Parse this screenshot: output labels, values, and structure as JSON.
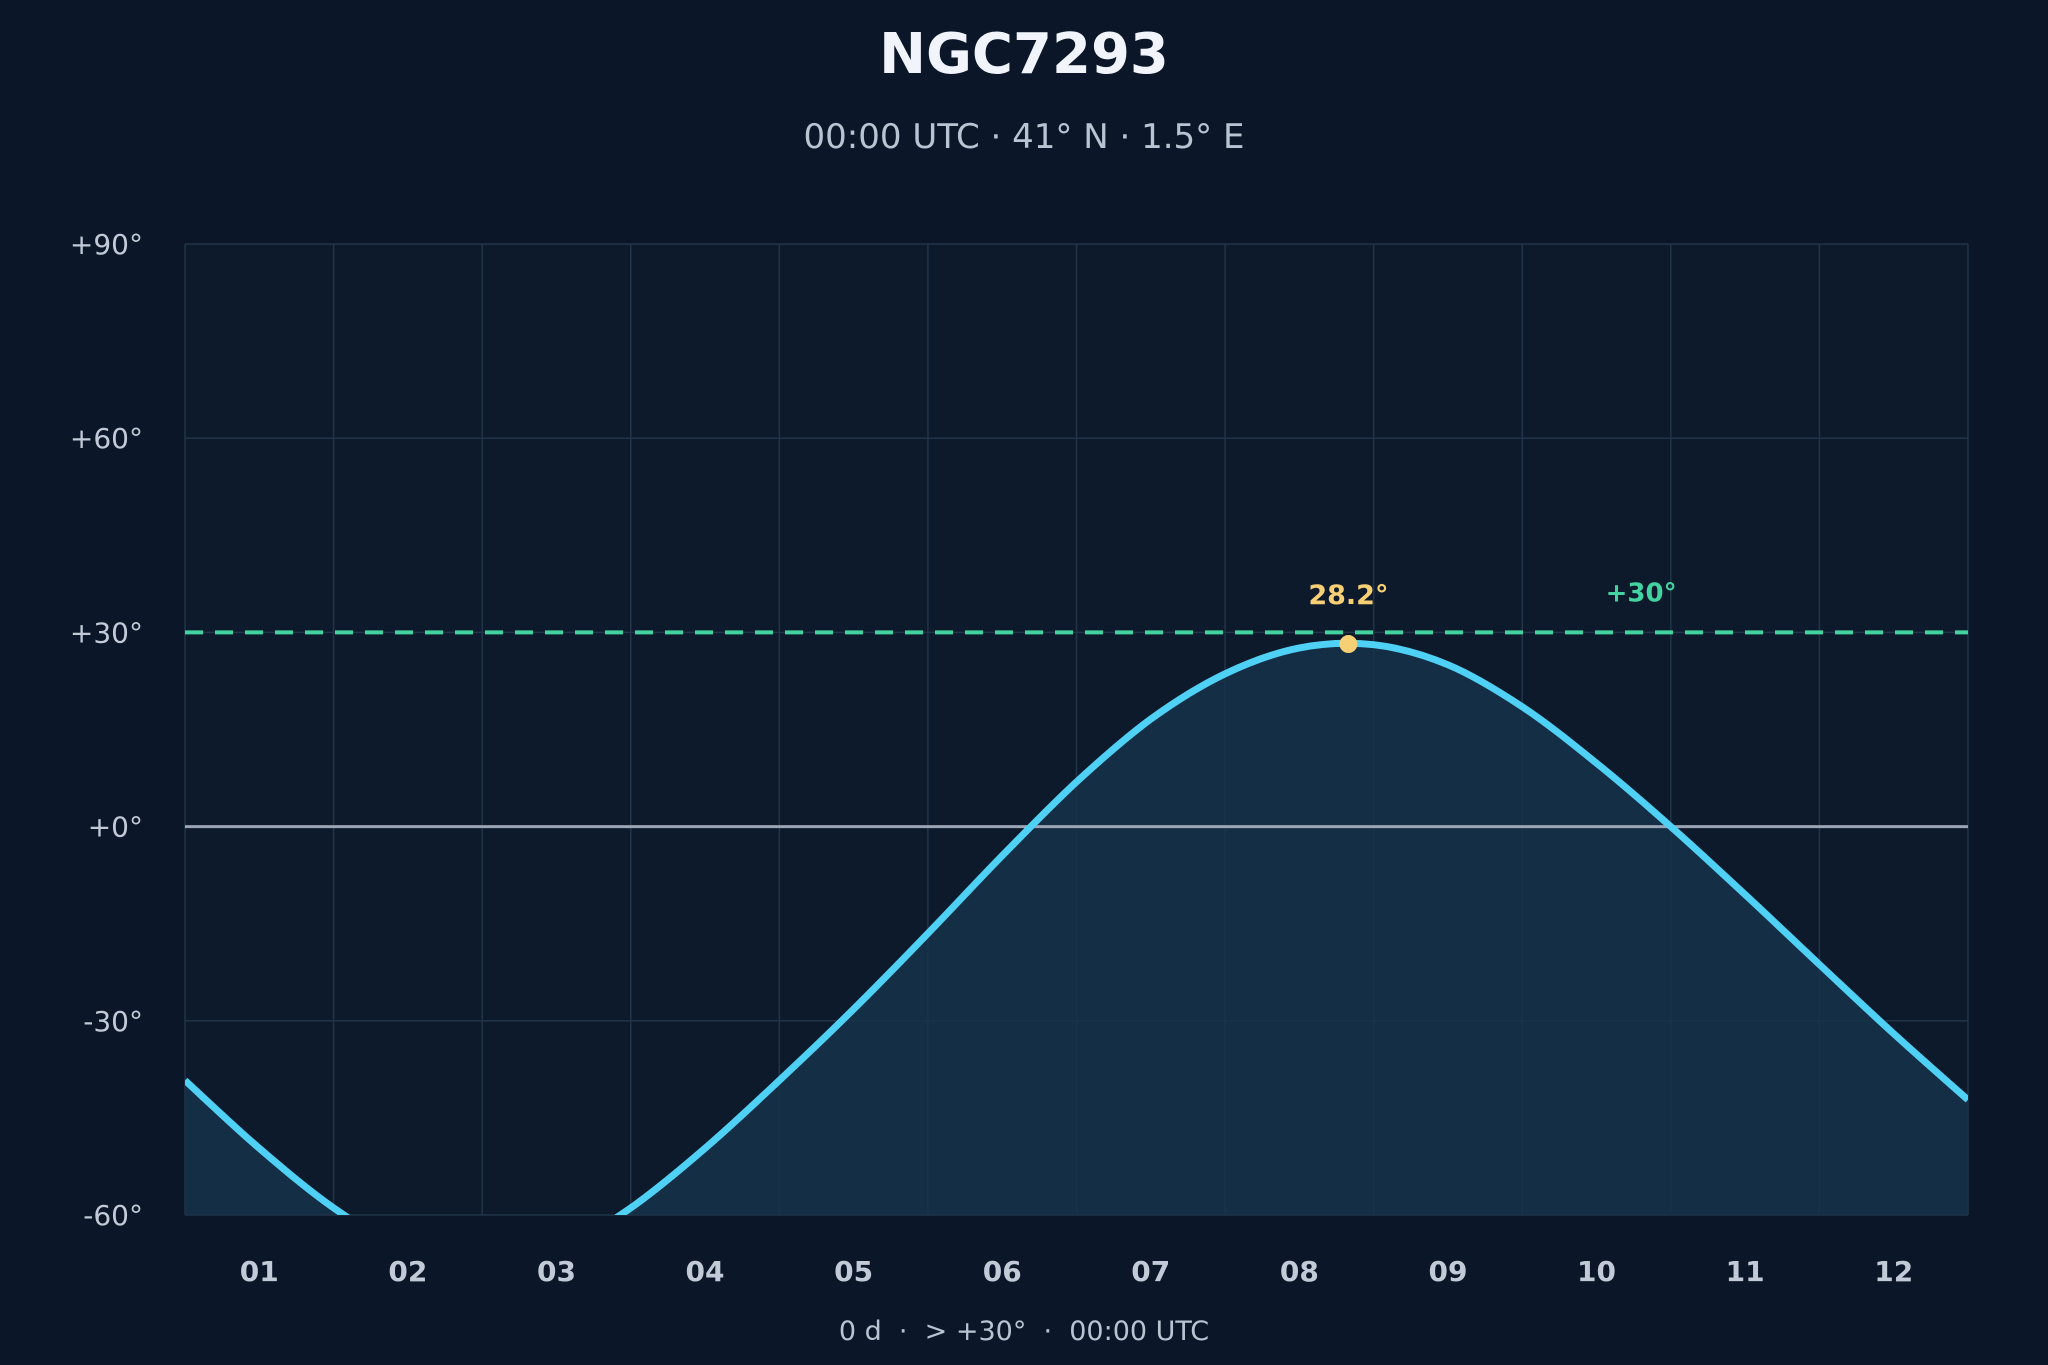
{
  "chart_data": {
    "type": "area",
    "title": "NGC7293",
    "subtitle": "00:00 UTC · 41° N · 1.5° E",
    "footer": "0 d  ·  > +30°  ·  00:00 UTC",
    "xlabel": "",
    "ylabel": "",
    "ylim": [
      -60,
      90
    ],
    "y_ticks": [
      "+90°",
      "+60°",
      "+30°",
      "+0°",
      "-30°",
      "-60°"
    ],
    "y_tick_values": [
      90,
      60,
      30,
      0,
      -30,
      -60
    ],
    "categories": [
      "01",
      "02",
      "03",
      "04",
      "05",
      "06",
      "07",
      "08",
      "09",
      "10",
      "11",
      "12"
    ],
    "x": [
      0.5,
      1.0,
      1.5,
      2.0,
      2.5,
      3.0,
      3.5,
      4.0,
      4.5,
      5.0,
      5.5,
      6.0,
      6.5,
      7.0,
      7.5,
      8.0,
      8.5,
      9.0,
      9.5,
      10.0,
      10.5,
      11.0,
      11.5,
      12.0,
      12.5
    ],
    "series": [
      {
        "values": [
          -39.2,
          -49.7,
          -58.9,
          -65.8,
          -69.2,
          -65.8,
          -58.9,
          -49.7,
          -39.2,
          -28.2,
          -16.5,
          -4.5,
          6.9,
          16.6,
          23.6,
          27.6,
          28.1,
          25.0,
          18.5,
          9.8,
          0.0,
          -10.5,
          -21.3,
          -32.0,
          -42.2
        ]
      }
    ],
    "threshold": {
      "value": 30,
      "label": "+30°"
    },
    "peak": {
      "x": 8.33,
      "value": 28.2,
      "label": "28.2°"
    },
    "grid": true,
    "colors": {
      "background": "#0b1628",
      "line": "#4fd1f5",
      "fill": "#16324a",
      "threshold": "#43d3a0",
      "peak": "#f7cf74",
      "horizon": "#9aa4b4",
      "grid": "#223449"
    }
  }
}
